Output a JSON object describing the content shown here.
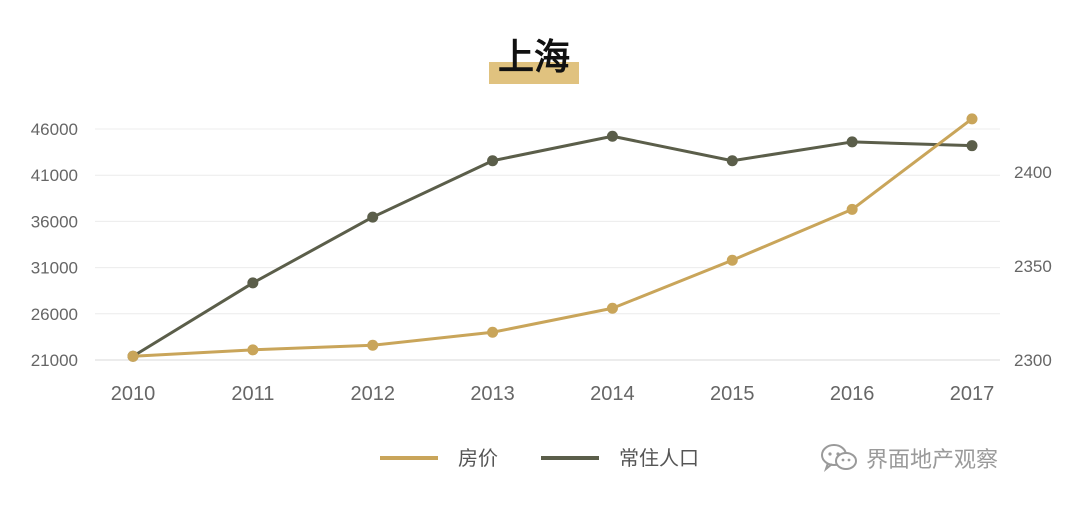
{
  "chart_data": {
    "type": "line",
    "title": "上海",
    "categories": [
      "2010",
      "2011",
      "2012",
      "2013",
      "2014",
      "2015",
      "2016",
      "2017"
    ],
    "series": [
      {
        "name": "房价",
        "axis": "left",
        "color": "#c9a55a",
        "values": [
          21400,
          22100,
          22600,
          24000,
          26600,
          31800,
          37300,
          47100
        ]
      },
      {
        "name": "常住人口",
        "axis": "right",
        "color": "#5b5e4a",
        "values": [
          2302,
          2341,
          2376,
          2406,
          2419,
          2406,
          2416,
          2414
        ]
      }
    ],
    "left_axis": {
      "ticks": [
        21000,
        26000,
        31000,
        36000,
        41000,
        46000
      ],
      "ylim": [
        21000,
        46000
      ]
    },
    "right_axis": {
      "ticks": [
        2300,
        2350,
        2400
      ],
      "ylim": [
        2300,
        2400
      ]
    },
    "grid": true,
    "legend_position": "bottom"
  },
  "watermark": {
    "text": "界面地产观察",
    "icon": "wechat-icon"
  }
}
